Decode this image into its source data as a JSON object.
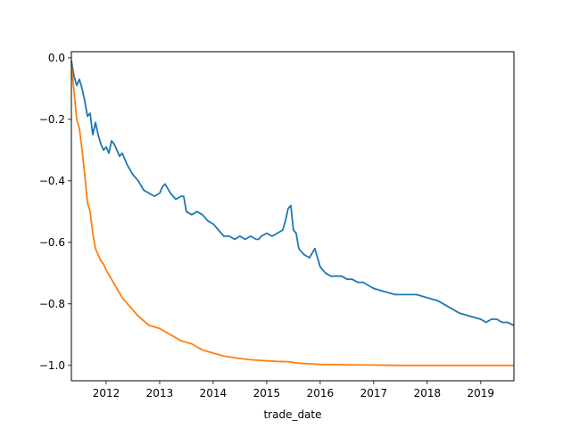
{
  "chart_data": {
    "type": "line",
    "title": "",
    "xlabel": "trade_date",
    "ylabel": "",
    "xlim": [
      2011.35,
      2019.62
    ],
    "ylim": [
      -1.05,
      0.02
    ],
    "grid": false,
    "x_ticks": [
      {
        "value": 2012,
        "label": "2012"
      },
      {
        "value": 2013,
        "label": "2013"
      },
      {
        "value": 2014,
        "label": "2014"
      },
      {
        "value": 2015,
        "label": "2015"
      },
      {
        "value": 2016,
        "label": "2016"
      },
      {
        "value": 2017,
        "label": "2017"
      },
      {
        "value": 2018,
        "label": "2018"
      },
      {
        "value": 2019,
        "label": "2019"
      }
    ],
    "y_ticks": [
      {
        "value": 0.0,
        "label": "0.0"
      },
      {
        "value": -0.2,
        "label": "−0.2"
      },
      {
        "value": -0.4,
        "label": "−0.4"
      },
      {
        "value": -0.6,
        "label": "−0.6"
      },
      {
        "value": -0.8,
        "label": "−0.8"
      },
      {
        "value": -1.0,
        "label": "−1.0"
      }
    ],
    "series": [
      {
        "color": "#1f77b4",
        "x": [
          2011.35,
          2011.4,
          2011.45,
          2011.5,
          2011.55,
          2011.6,
          2011.65,
          2011.7,
          2011.75,
          2011.8,
          2011.85,
          2011.9,
          2011.95,
          2012.0,
          2012.05,
          2012.1,
          2012.15,
          2012.2,
          2012.25,
          2012.3,
          2012.4,
          2012.5,
          2012.6,
          2012.7,
          2012.8,
          2012.9,
          2013.0,
          2013.05,
          2013.1,
          2013.2,
          2013.3,
          2013.4,
          2013.45,
          2013.5,
          2013.6,
          2013.7,
          2013.8,
          2013.9,
          2014.0,
          2014.1,
          2014.2,
          2014.3,
          2014.4,
          2014.5,
          2014.6,
          2014.7,
          2014.8,
          2014.85,
          2014.9,
          2015.0,
          2015.1,
          2015.2,
          2015.3,
          2015.35,
          2015.4,
          2015.45,
          2015.5,
          2015.55,
          2015.6,
          2015.7,
          2015.8,
          2015.9,
          2016.0,
          2016.1,
          2016.2,
          2016.3,
          2016.4,
          2016.5,
          2016.6,
          2016.7,
          2016.8,
          2016.9,
          2017.0,
          2017.2,
          2017.4,
          2017.6,
          2017.8,
          2018.0,
          2018.2,
          2018.4,
          2018.6,
          2018.8,
          2019.0,
          2019.1,
          2019.2,
          2019.3,
          2019.4,
          2019.5,
          2019.62
        ],
        "values": [
          -0.01,
          -0.06,
          -0.09,
          -0.07,
          -0.1,
          -0.14,
          -0.19,
          -0.18,
          -0.25,
          -0.21,
          -0.25,
          -0.28,
          -0.3,
          -0.29,
          -0.31,
          -0.27,
          -0.28,
          -0.3,
          -0.32,
          -0.31,
          -0.35,
          -0.38,
          -0.4,
          -0.43,
          -0.44,
          -0.45,
          -0.44,
          -0.42,
          -0.41,
          -0.44,
          -0.46,
          -0.45,
          -0.45,
          -0.5,
          -0.51,
          -0.5,
          -0.51,
          -0.53,
          -0.54,
          -0.56,
          -0.58,
          -0.58,
          -0.59,
          -0.58,
          -0.59,
          -0.58,
          -0.59,
          -0.59,
          -0.58,
          -0.57,
          -0.58,
          -0.57,
          -0.56,
          -0.53,
          -0.49,
          -0.48,
          -0.56,
          -0.57,
          -0.62,
          -0.64,
          -0.65,
          -0.62,
          -0.68,
          -0.7,
          -0.71,
          -0.71,
          -0.71,
          -0.72,
          -0.72,
          -0.73,
          -0.73,
          -0.74,
          -0.75,
          -0.76,
          -0.77,
          -0.77,
          -0.77,
          -0.78,
          -0.79,
          -0.81,
          -0.83,
          -0.84,
          -0.85,
          -0.86,
          -0.85,
          -0.85,
          -0.86,
          -0.86,
          -0.87
        ]
      },
      {
        "color": "#ff7f0e",
        "x": [
          2011.35,
          2011.4,
          2011.45,
          2011.5,
          2011.55,
          2011.6,
          2011.65,
          2011.7,
          2011.75,
          2011.8,
          2011.85,
          2011.9,
          2011.95,
          2012.0,
          2012.1,
          2012.2,
          2012.3,
          2012.4,
          2012.5,
          2012.6,
          2012.8,
          2013.0,
          2013.2,
          2013.4,
          2013.6,
          2013.8,
          2014.0,
          2014.2,
          2014.4,
          2014.6,
          2014.8,
          2015.0,
          2015.2,
          2015.4,
          2015.6,
          2015.8,
          2016.0,
          2016.5,
          2017.0,
          2017.5,
          2018.0,
          2018.5,
          2019.0,
          2019.62
        ],
        "values": [
          -0.02,
          -0.11,
          -0.2,
          -0.23,
          -0.3,
          -0.38,
          -0.47,
          -0.5,
          -0.57,
          -0.62,
          -0.64,
          -0.66,
          -0.67,
          -0.69,
          -0.72,
          -0.75,
          -0.78,
          -0.8,
          -0.82,
          -0.84,
          -0.87,
          -0.88,
          -0.9,
          -0.92,
          -0.93,
          -0.95,
          -0.96,
          -0.97,
          -0.975,
          -0.98,
          -0.983,
          -0.985,
          -0.987,
          -0.988,
          -0.993,
          -0.995,
          -0.997,
          -0.998,
          -0.999,
          -1.0,
          -1.0,
          -1.0,
          -1.0,
          -1.0
        ]
      }
    ]
  }
}
